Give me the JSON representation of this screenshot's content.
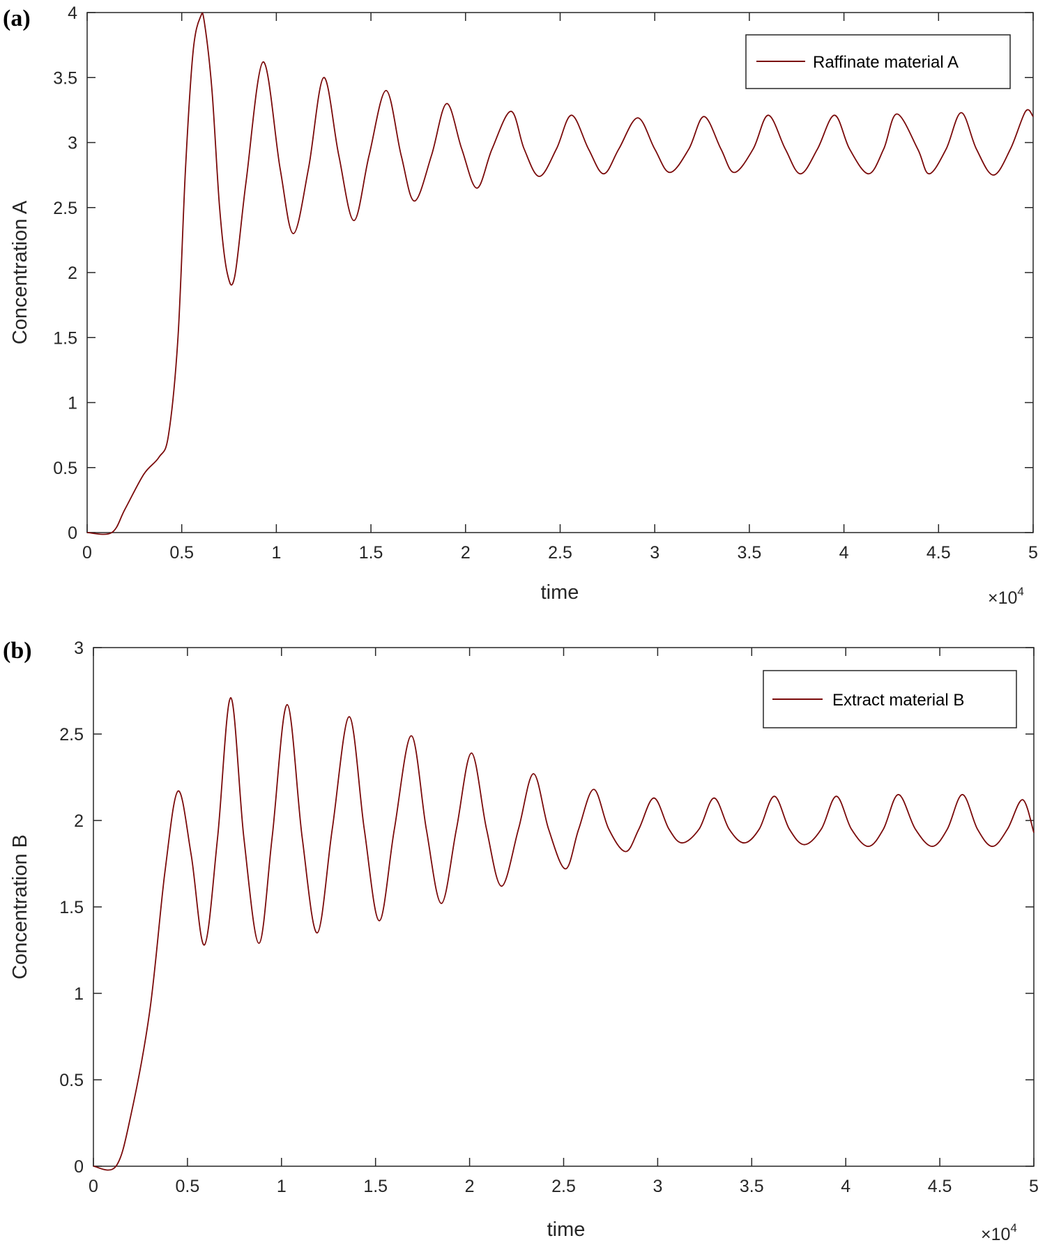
{
  "chart_data": [
    {
      "panel": "(a)",
      "type": "line",
      "xlabel": "time",
      "ylabel": "Concentration A",
      "xlim": [
        0,
        50000
      ],
      "ylim": [
        0,
        4
      ],
      "x_multiplier_label": "×10",
      "x_multiplier_exponent": "4",
      "xticks": [
        0,
        5000,
        10000,
        15000,
        20000,
        25000,
        30000,
        35000,
        40000,
        45000,
        50000
      ],
      "xtick_labels": [
        "0",
        "0.5",
        "1",
        "1.5",
        "2",
        "2.5",
        "3",
        "3.5",
        "4",
        "4.5",
        "5"
      ],
      "yticks": [
        0,
        0.5,
        1,
        1.5,
        2,
        2.5,
        3,
        3.5,
        4
      ],
      "ytick_labels": [
        "0",
        "0.5",
        "1",
        "1.5",
        "2",
        "2.5",
        "3",
        "3.5",
        "4"
      ],
      "legend_position": "top-right",
      "grid": false,
      "series": [
        {
          "name": "Raffinate material A",
          "color": "#7a0a0a",
          "x": [
            0,
            1300,
            2000,
            3000,
            3800,
            4300,
            4800,
            5200,
            5600,
            6000,
            6200,
            6600,
            7000,
            7400,
            7800,
            8400,
            9300,
            10200,
            10900,
            11700,
            12500,
            13300,
            14100,
            14900,
            15800,
            16600,
            17300,
            18200,
            19000,
            19800,
            20600,
            21400,
            22400,
            23100,
            23900,
            24800,
            25600,
            26500,
            27300,
            28100,
            29100,
            30000,
            30800,
            31800,
            32600,
            33500,
            34200,
            35200,
            36000,
            36900,
            37700,
            38600,
            39500,
            40300,
            41300,
            42100,
            42800,
            43900,
            44500,
            45400,
            46200,
            47000,
            47900,
            48800,
            49600,
            50000
          ],
          "y": [
            0,
            0,
            0.18,
            0.45,
            0.58,
            0.75,
            1.5,
            2.8,
            3.7,
            3.97,
            3.92,
            3.4,
            2.5,
            2.0,
            1.97,
            2.7,
            3.62,
            2.8,
            2.3,
            2.8,
            3.5,
            2.9,
            2.4,
            2.9,
            3.4,
            2.9,
            2.55,
            2.9,
            3.3,
            2.95,
            2.65,
            2.95,
            3.24,
            2.95,
            2.74,
            2.95,
            3.21,
            2.95,
            2.76,
            2.95,
            3.19,
            2.95,
            2.77,
            2.95,
            3.2,
            2.95,
            2.77,
            2.95,
            3.21,
            2.95,
            2.76,
            2.95,
            3.21,
            2.95,
            2.76,
            2.95,
            3.22,
            2.95,
            2.76,
            2.95,
            3.23,
            2.95,
            2.75,
            2.95,
            3.24,
            3.2
          ]
        }
      ]
    },
    {
      "panel": "(b)",
      "type": "line",
      "xlabel": "time",
      "ylabel": "Concentration B",
      "xlim": [
        0,
        50000
      ],
      "ylim": [
        0,
        3
      ],
      "x_multiplier_label": "×10",
      "x_multiplier_exponent": "4",
      "xticks": [
        0,
        5000,
        10000,
        15000,
        20000,
        25000,
        30000,
        35000,
        40000,
        45000,
        50000
      ],
      "xtick_labels": [
        "0",
        "0.5",
        "1",
        "1.5",
        "2",
        "2.5",
        "3",
        "3.5",
        "4",
        "4.5",
        "5"
      ],
      "yticks": [
        0,
        0.5,
        1,
        1.5,
        2,
        2.5,
        3
      ],
      "ytick_labels": [
        "0",
        "0.5",
        "1",
        "1.5",
        "2",
        "2.5",
        "3"
      ],
      "legend_position": "top-right",
      "grid": false,
      "series": [
        {
          "name": "Extract material B",
          "color": "#7a0a0a",
          "x": [
            0,
            1200,
            2000,
            3000,
            3800,
            4500,
            5200,
            5900,
            6600,
            7300,
            8000,
            8800,
            9500,
            10300,
            11100,
            11900,
            12700,
            13600,
            14400,
            15200,
            16000,
            16900,
            17700,
            18500,
            19300,
            20100,
            20900,
            21700,
            22600,
            23400,
            24200,
            25100,
            25800,
            26600,
            27400,
            28300,
            29000,
            29800,
            30600,
            31300,
            32200,
            33000,
            33800,
            34600,
            35400,
            36200,
            37000,
            37800,
            38700,
            39500,
            40300,
            41200,
            42000,
            42800,
            43700,
            44600,
            45400,
            46200,
            47000,
            47800,
            48600,
            49400,
            50000
          ],
          "y": [
            0,
            0,
            0.3,
            0.9,
            1.7,
            2.17,
            1.8,
            1.28,
            1.9,
            2.71,
            1.9,
            1.29,
            1.9,
            2.67,
            1.9,
            1.35,
            1.95,
            2.6,
            1.95,
            1.42,
            1.95,
            2.49,
            1.95,
            1.52,
            1.95,
            2.39,
            1.95,
            1.62,
            1.95,
            2.27,
            1.95,
            1.72,
            1.95,
            2.18,
            1.95,
            1.82,
            1.95,
            2.13,
            1.95,
            1.87,
            1.95,
            2.13,
            1.95,
            1.87,
            1.95,
            2.14,
            1.95,
            1.86,
            1.95,
            2.14,
            1.95,
            1.85,
            1.95,
            2.15,
            1.95,
            1.85,
            1.95,
            2.15,
            1.95,
            1.85,
            1.95,
            2.12,
            1.93
          ]
        }
      ]
    }
  ]
}
